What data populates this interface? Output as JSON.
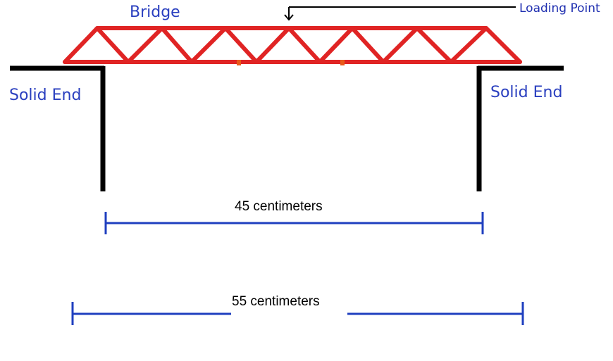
{
  "labels": {
    "bridge": "Bridge",
    "loading_point": "Loading Point",
    "solid_end_left": "Solid End",
    "solid_end_right": "Solid End"
  },
  "dimensions": {
    "inner_span": "45 centimeters",
    "outer_span": "55 centimeters"
  },
  "colors": {
    "truss": "#e02424",
    "support": "#000000",
    "label": "#2a3fbf",
    "dimension_line": "#1f3fbf"
  }
}
